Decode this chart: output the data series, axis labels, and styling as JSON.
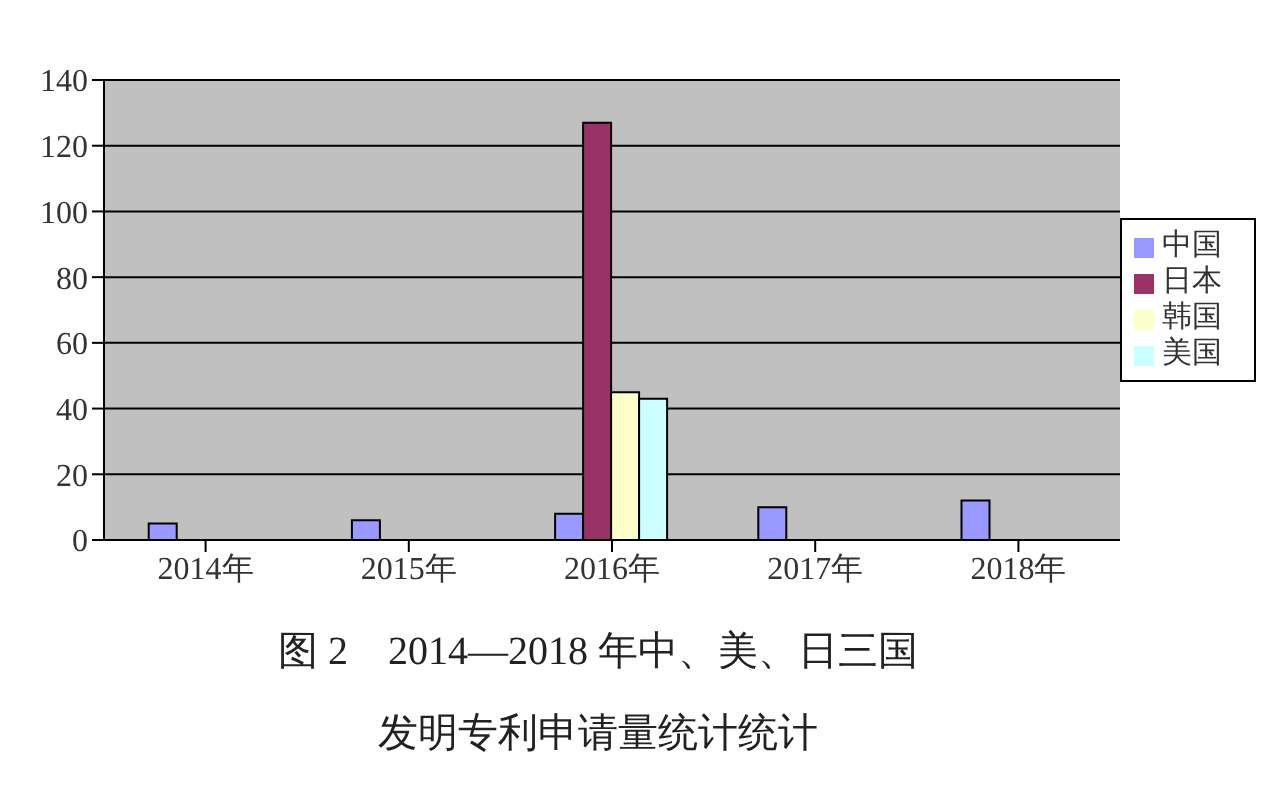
{
  "chart_data": {
    "type": "bar",
    "title": "图 2　2014—2018 年中、美、日三国",
    "subtitle": "发明专利申请量统计统计",
    "categories": [
      "2014年",
      "2015年",
      "2016年",
      "2017年",
      "2018年"
    ],
    "series": [
      {
        "name": "中国",
        "color": "#9999ff",
        "values": [
          5,
          6,
          8,
          10,
          12
        ]
      },
      {
        "name": "日本",
        "color": "#993366",
        "values": [
          0,
          0,
          127,
          0,
          0
        ]
      },
      {
        "name": "韩国",
        "color": "#ffffcc",
        "values": [
          0,
          0,
          45,
          0,
          0
        ]
      },
      {
        "name": "美国",
        "color": "#ccffff",
        "values": [
          0,
          0,
          43,
          0,
          0
        ]
      }
    ],
    "ylim": [
      0,
      140
    ],
    "yticks": [
      0,
      20,
      40,
      60,
      80,
      100,
      120,
      140
    ],
    "grid": "y",
    "legend": "right"
  }
}
